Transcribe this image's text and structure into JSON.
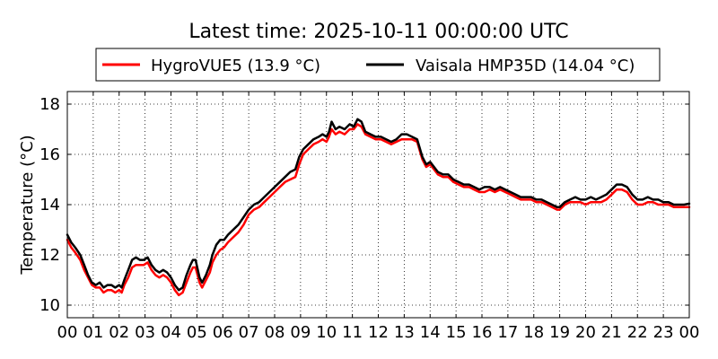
{
  "chart_data": {
    "type": "line",
    "title": "Latest time: 2025-10-11 00:00:00 UTC",
    "xlabel": "",
    "ylabel": "Temperature (°C)",
    "xlim": [
      0,
      24
    ],
    "ylim": [
      9.5,
      18.5
    ],
    "x_ticks": [
      0,
      1,
      2,
      3,
      4,
      5,
      6,
      7,
      8,
      9,
      10,
      11,
      12,
      13,
      14,
      15,
      16,
      17,
      18,
      19,
      20,
      21,
      22,
      23,
      24
    ],
    "x_tick_labels": [
      "00",
      "01",
      "02",
      "03",
      "04",
      "05",
      "06",
      "07",
      "08",
      "09",
      "10",
      "11",
      "12",
      "13",
      "14",
      "15",
      "16",
      "17",
      "18",
      "19",
      "20",
      "21",
      "22",
      "23",
      "00"
    ],
    "y_ticks": [
      10,
      12,
      14,
      16,
      18
    ],
    "y_tick_labels": [
      "10",
      "12",
      "14",
      "16",
      "18"
    ],
    "grid": true,
    "legend_position": "top-center",
    "series": [
      {
        "name": "HygroVUE5 (13.9 °C)",
        "color": "#ff0000",
        "points": [
          [
            0,
            12.6
          ],
          [
            0.15,
            12.3
          ],
          [
            0.3,
            12.1
          ],
          [
            0.5,
            11.8
          ],
          [
            0.65,
            11.4
          ],
          [
            0.8,
            11.1
          ],
          [
            0.95,
            10.8
          ],
          [
            1.1,
            10.7
          ],
          [
            1.25,
            10.7
          ],
          [
            1.4,
            10.5
          ],
          [
            1.55,
            10.6
          ],
          [
            1.7,
            10.6
          ],
          [
            1.85,
            10.5
          ],
          [
            2.0,
            10.6
          ],
          [
            2.1,
            10.5
          ],
          [
            2.2,
            10.8
          ],
          [
            2.35,
            11.1
          ],
          [
            2.5,
            11.5
          ],
          [
            2.65,
            11.6
          ],
          [
            2.8,
            11.6
          ],
          [
            2.95,
            11.6
          ],
          [
            3.1,
            11.7
          ],
          [
            3.25,
            11.4
          ],
          [
            3.4,
            11.2
          ],
          [
            3.55,
            11.1
          ],
          [
            3.7,
            11.2
          ],
          [
            3.85,
            11.1
          ],
          [
            4.0,
            10.9
          ],
          [
            4.15,
            10.6
          ],
          [
            4.3,
            10.4
          ],
          [
            4.45,
            10.5
          ],
          [
            4.6,
            10.9
          ],
          [
            4.75,
            11.3
          ],
          [
            4.85,
            11.5
          ],
          [
            4.95,
            11.5
          ],
          [
            5.1,
            10.9
          ],
          [
            5.2,
            10.7
          ],
          [
            5.35,
            11.0
          ],
          [
            5.5,
            11.3
          ],
          [
            5.6,
            11.7
          ],
          [
            5.75,
            12.0
          ],
          [
            5.9,
            12.2
          ],
          [
            6.05,
            12.3
          ],
          [
            6.2,
            12.5
          ],
          [
            6.4,
            12.7
          ],
          [
            6.6,
            12.9
          ],
          [
            6.8,
            13.2
          ],
          [
            7.0,
            13.6
          ],
          [
            7.2,
            13.8
          ],
          [
            7.4,
            13.9
          ],
          [
            7.6,
            14.1
          ],
          [
            7.8,
            14.3
          ],
          [
            8.0,
            14.5
          ],
          [
            8.2,
            14.7
          ],
          [
            8.4,
            14.9
          ],
          [
            8.6,
            15.0
          ],
          [
            8.8,
            15.1
          ],
          [
            8.95,
            15.6
          ],
          [
            9.1,
            16.0
          ],
          [
            9.3,
            16.2
          ],
          [
            9.5,
            16.4
          ],
          [
            9.7,
            16.5
          ],
          [
            9.85,
            16.6
          ],
          [
            10.0,
            16.5
          ],
          [
            10.1,
            16.7
          ],
          [
            10.2,
            17.0
          ],
          [
            10.35,
            16.8
          ],
          [
            10.5,
            16.9
          ],
          [
            10.7,
            16.8
          ],
          [
            10.9,
            17.0
          ],
          [
            11.05,
            17.0
          ],
          [
            11.2,
            17.2
          ],
          [
            11.35,
            17.1
          ],
          [
            11.5,
            16.8
          ],
          [
            11.7,
            16.7
          ],
          [
            11.9,
            16.6
          ],
          [
            12.1,
            16.6
          ],
          [
            12.3,
            16.5
          ],
          [
            12.5,
            16.4
          ],
          [
            12.7,
            16.5
          ],
          [
            12.9,
            16.6
          ],
          [
            13.1,
            16.6
          ],
          [
            13.3,
            16.6
          ],
          [
            13.5,
            16.5
          ],
          [
            13.7,
            15.8
          ],
          [
            13.85,
            15.5
          ],
          [
            14.0,
            15.6
          ],
          [
            14.15,
            15.4
          ],
          [
            14.3,
            15.2
          ],
          [
            14.5,
            15.1
          ],
          [
            14.7,
            15.1
          ],
          [
            14.9,
            14.9
          ],
          [
            15.1,
            14.8
          ],
          [
            15.3,
            14.7
          ],
          [
            15.5,
            14.7
          ],
          [
            15.7,
            14.6
          ],
          [
            15.9,
            14.5
          ],
          [
            16.1,
            14.5
          ],
          [
            16.3,
            14.6
          ],
          [
            16.5,
            14.5
          ],
          [
            16.7,
            14.6
          ],
          [
            16.9,
            14.5
          ],
          [
            17.1,
            14.4
          ],
          [
            17.3,
            14.3
          ],
          [
            17.5,
            14.2
          ],
          [
            17.7,
            14.2
          ],
          [
            17.9,
            14.2
          ],
          [
            18.1,
            14.1
          ],
          [
            18.3,
            14.1
          ],
          [
            18.5,
            14.0
          ],
          [
            18.7,
            13.9
          ],
          [
            18.9,
            13.8
          ],
          [
            19.0,
            13.8
          ],
          [
            19.2,
            14.0
          ],
          [
            19.4,
            14.1
          ],
          [
            19.6,
            14.1
          ],
          [
            19.8,
            14.1
          ],
          [
            20.0,
            14.0
          ],
          [
            20.2,
            14.1
          ],
          [
            20.4,
            14.1
          ],
          [
            20.6,
            14.1
          ],
          [
            20.8,
            14.2
          ],
          [
            21.0,
            14.4
          ],
          [
            21.2,
            14.6
          ],
          [
            21.4,
            14.6
          ],
          [
            21.6,
            14.5
          ],
          [
            21.8,
            14.2
          ],
          [
            22.0,
            14.0
          ],
          [
            22.2,
            14.0
          ],
          [
            22.4,
            14.1
          ],
          [
            22.6,
            14.1
          ],
          [
            22.8,
            14.0
          ],
          [
            23.0,
            14.0
          ],
          [
            23.2,
            14.0
          ],
          [
            23.4,
            13.9
          ],
          [
            23.6,
            13.9
          ],
          [
            23.8,
            13.9
          ],
          [
            24.0,
            13.9
          ]
        ]
      },
      {
        "name": "Vaisala HMP35D (14.04 °C)",
        "color": "#000000",
        "points": [
          [
            0,
            12.8
          ],
          [
            0.15,
            12.5
          ],
          [
            0.3,
            12.3
          ],
          [
            0.5,
            12.0
          ],
          [
            0.65,
            11.6
          ],
          [
            0.8,
            11.2
          ],
          [
            0.95,
            10.9
          ],
          [
            1.1,
            10.8
          ],
          [
            1.25,
            10.9
          ],
          [
            1.4,
            10.7
          ],
          [
            1.55,
            10.8
          ],
          [
            1.7,
            10.8
          ],
          [
            1.85,
            10.7
          ],
          [
            2.0,
            10.8
          ],
          [
            2.1,
            10.7
          ],
          [
            2.2,
            11.0
          ],
          [
            2.35,
            11.4
          ],
          [
            2.5,
            11.8
          ],
          [
            2.65,
            11.9
          ],
          [
            2.8,
            11.8
          ],
          [
            2.95,
            11.8
          ],
          [
            3.1,
            11.9
          ],
          [
            3.25,
            11.6
          ],
          [
            3.4,
            11.4
          ],
          [
            3.55,
            11.3
          ],
          [
            3.7,
            11.4
          ],
          [
            3.85,
            11.3
          ],
          [
            4.0,
            11.1
          ],
          [
            4.15,
            10.8
          ],
          [
            4.3,
            10.6
          ],
          [
            4.45,
            10.7
          ],
          [
            4.6,
            11.2
          ],
          [
            4.75,
            11.6
          ],
          [
            4.85,
            11.8
          ],
          [
            4.95,
            11.8
          ],
          [
            5.1,
            11.1
          ],
          [
            5.2,
            10.9
          ],
          [
            5.35,
            11.2
          ],
          [
            5.5,
            11.6
          ],
          [
            5.6,
            12.0
          ],
          [
            5.75,
            12.4
          ],
          [
            5.9,
            12.6
          ],
          [
            6.05,
            12.6
          ],
          [
            6.2,
            12.8
          ],
          [
            6.4,
            13.0
          ],
          [
            6.6,
            13.2
          ],
          [
            6.8,
            13.5
          ],
          [
            7.0,
            13.8
          ],
          [
            7.2,
            14.0
          ],
          [
            7.4,
            14.1
          ],
          [
            7.6,
            14.3
          ],
          [
            7.8,
            14.5
          ],
          [
            8.0,
            14.7
          ],
          [
            8.2,
            14.9
          ],
          [
            8.4,
            15.1
          ],
          [
            8.6,
            15.3
          ],
          [
            8.8,
            15.4
          ],
          [
            8.95,
            15.9
          ],
          [
            9.1,
            16.2
          ],
          [
            9.3,
            16.4
          ],
          [
            9.5,
            16.6
          ],
          [
            9.7,
            16.7
          ],
          [
            9.85,
            16.8
          ],
          [
            10.0,
            16.7
          ],
          [
            10.1,
            16.9
          ],
          [
            10.2,
            17.3
          ],
          [
            10.35,
            17.0
          ],
          [
            10.5,
            17.1
          ],
          [
            10.7,
            17.0
          ],
          [
            10.9,
            17.2
          ],
          [
            11.05,
            17.1
          ],
          [
            11.2,
            17.4
          ],
          [
            11.35,
            17.3
          ],
          [
            11.5,
            16.9
          ],
          [
            11.7,
            16.8
          ],
          [
            11.9,
            16.7
          ],
          [
            12.1,
            16.7
          ],
          [
            12.3,
            16.6
          ],
          [
            12.5,
            16.5
          ],
          [
            12.7,
            16.6
          ],
          [
            12.9,
            16.8
          ],
          [
            13.1,
            16.8
          ],
          [
            13.3,
            16.7
          ],
          [
            13.5,
            16.6
          ],
          [
            13.7,
            15.9
          ],
          [
            13.85,
            15.6
          ],
          [
            14.0,
            15.7
          ],
          [
            14.15,
            15.5
          ],
          [
            14.3,
            15.3
          ],
          [
            14.5,
            15.2
          ],
          [
            14.7,
            15.2
          ],
          [
            14.9,
            15.0
          ],
          [
            15.1,
            14.9
          ],
          [
            15.3,
            14.8
          ],
          [
            15.5,
            14.8
          ],
          [
            15.7,
            14.7
          ],
          [
            15.9,
            14.6
          ],
          [
            16.1,
            14.7
          ],
          [
            16.3,
            14.7
          ],
          [
            16.5,
            14.6
          ],
          [
            16.7,
            14.7
          ],
          [
            16.9,
            14.6
          ],
          [
            17.1,
            14.5
          ],
          [
            17.3,
            14.4
          ],
          [
            17.5,
            14.3
          ],
          [
            17.7,
            14.3
          ],
          [
            17.9,
            14.3
          ],
          [
            18.1,
            14.2
          ],
          [
            18.3,
            14.2
          ],
          [
            18.5,
            14.1
          ],
          [
            18.7,
            14.0
          ],
          [
            18.9,
            13.9
          ],
          [
            19.0,
            13.9
          ],
          [
            19.2,
            14.1
          ],
          [
            19.4,
            14.2
          ],
          [
            19.6,
            14.3
          ],
          [
            19.8,
            14.2
          ],
          [
            20.0,
            14.2
          ],
          [
            20.2,
            14.3
          ],
          [
            20.4,
            14.2
          ],
          [
            20.6,
            14.3
          ],
          [
            20.8,
            14.4
          ],
          [
            21.0,
            14.6
          ],
          [
            21.2,
            14.8
          ],
          [
            21.4,
            14.8
          ],
          [
            21.6,
            14.7
          ],
          [
            21.8,
            14.4
          ],
          [
            22.0,
            14.2
          ],
          [
            22.2,
            14.2
          ],
          [
            22.4,
            14.3
          ],
          [
            22.6,
            14.2
          ],
          [
            22.8,
            14.2
          ],
          [
            23.0,
            14.1
          ],
          [
            23.2,
            14.1
          ],
          [
            23.4,
            14.0
          ],
          [
            23.6,
            14.0
          ],
          [
            23.8,
            14.0
          ],
          [
            24.0,
            14.04
          ]
        ]
      }
    ]
  }
}
